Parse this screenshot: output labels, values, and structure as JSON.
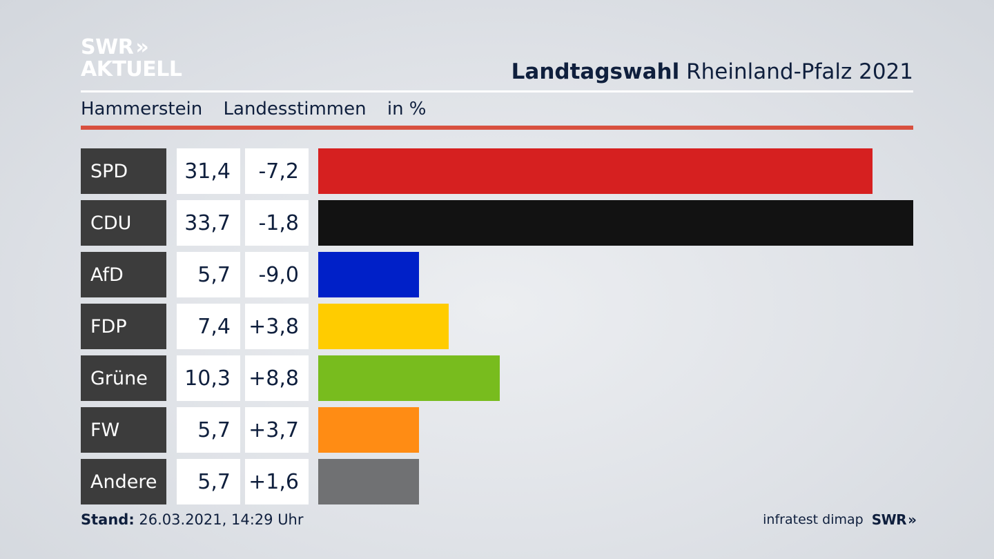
{
  "logo": {
    "line1": "SWR",
    "chevrons": "»",
    "line2": "AKTUELL"
  },
  "header": {
    "title_bold": "Landtagswahl",
    "title_rest": "Rheinland-Pfalz 2021"
  },
  "subheader": {
    "place": "Hammerstein",
    "vote_type": "Landesstimmen",
    "unit": "in %"
  },
  "colors": {
    "accent_rule": "#d8503f",
    "label_bg": "#3c3c3c"
  },
  "chart_data": {
    "type": "bar",
    "orientation": "horizontal",
    "categories": [
      "SPD",
      "CDU",
      "AfD",
      "FDP",
      "Grüne",
      "FW",
      "Andere"
    ],
    "values": [
      31.4,
      33.7,
      5.7,
      7.4,
      10.3,
      5.7,
      5.7
    ],
    "value_labels": [
      "31,4",
      "33,7",
      "5,7",
      "7,4",
      "10,3",
      "5,7",
      "5,7"
    ],
    "diff_labels": [
      "-7,2",
      "-1,8",
      "-9,0",
      "+3,8",
      "+8,8",
      "+3,7",
      "+1,6"
    ],
    "diffs": [
      -7.2,
      -1.8,
      -9.0,
      3.8,
      8.8,
      3.7,
      1.6
    ],
    "bar_colors": [
      "#d62020",
      "#121212",
      "#0020c8",
      "#ffcc00",
      "#78bc1e",
      "#ff8c14",
      "#707173"
    ],
    "xlim": [
      0,
      33.7
    ],
    "grid": false,
    "legend": "none"
  },
  "footer": {
    "stand_label": "Stand:",
    "stand_value": "26.03.2021, 14:29 Uhr",
    "source": "infratest dimap",
    "brand": "SWR",
    "brand_chevrons": "»"
  }
}
